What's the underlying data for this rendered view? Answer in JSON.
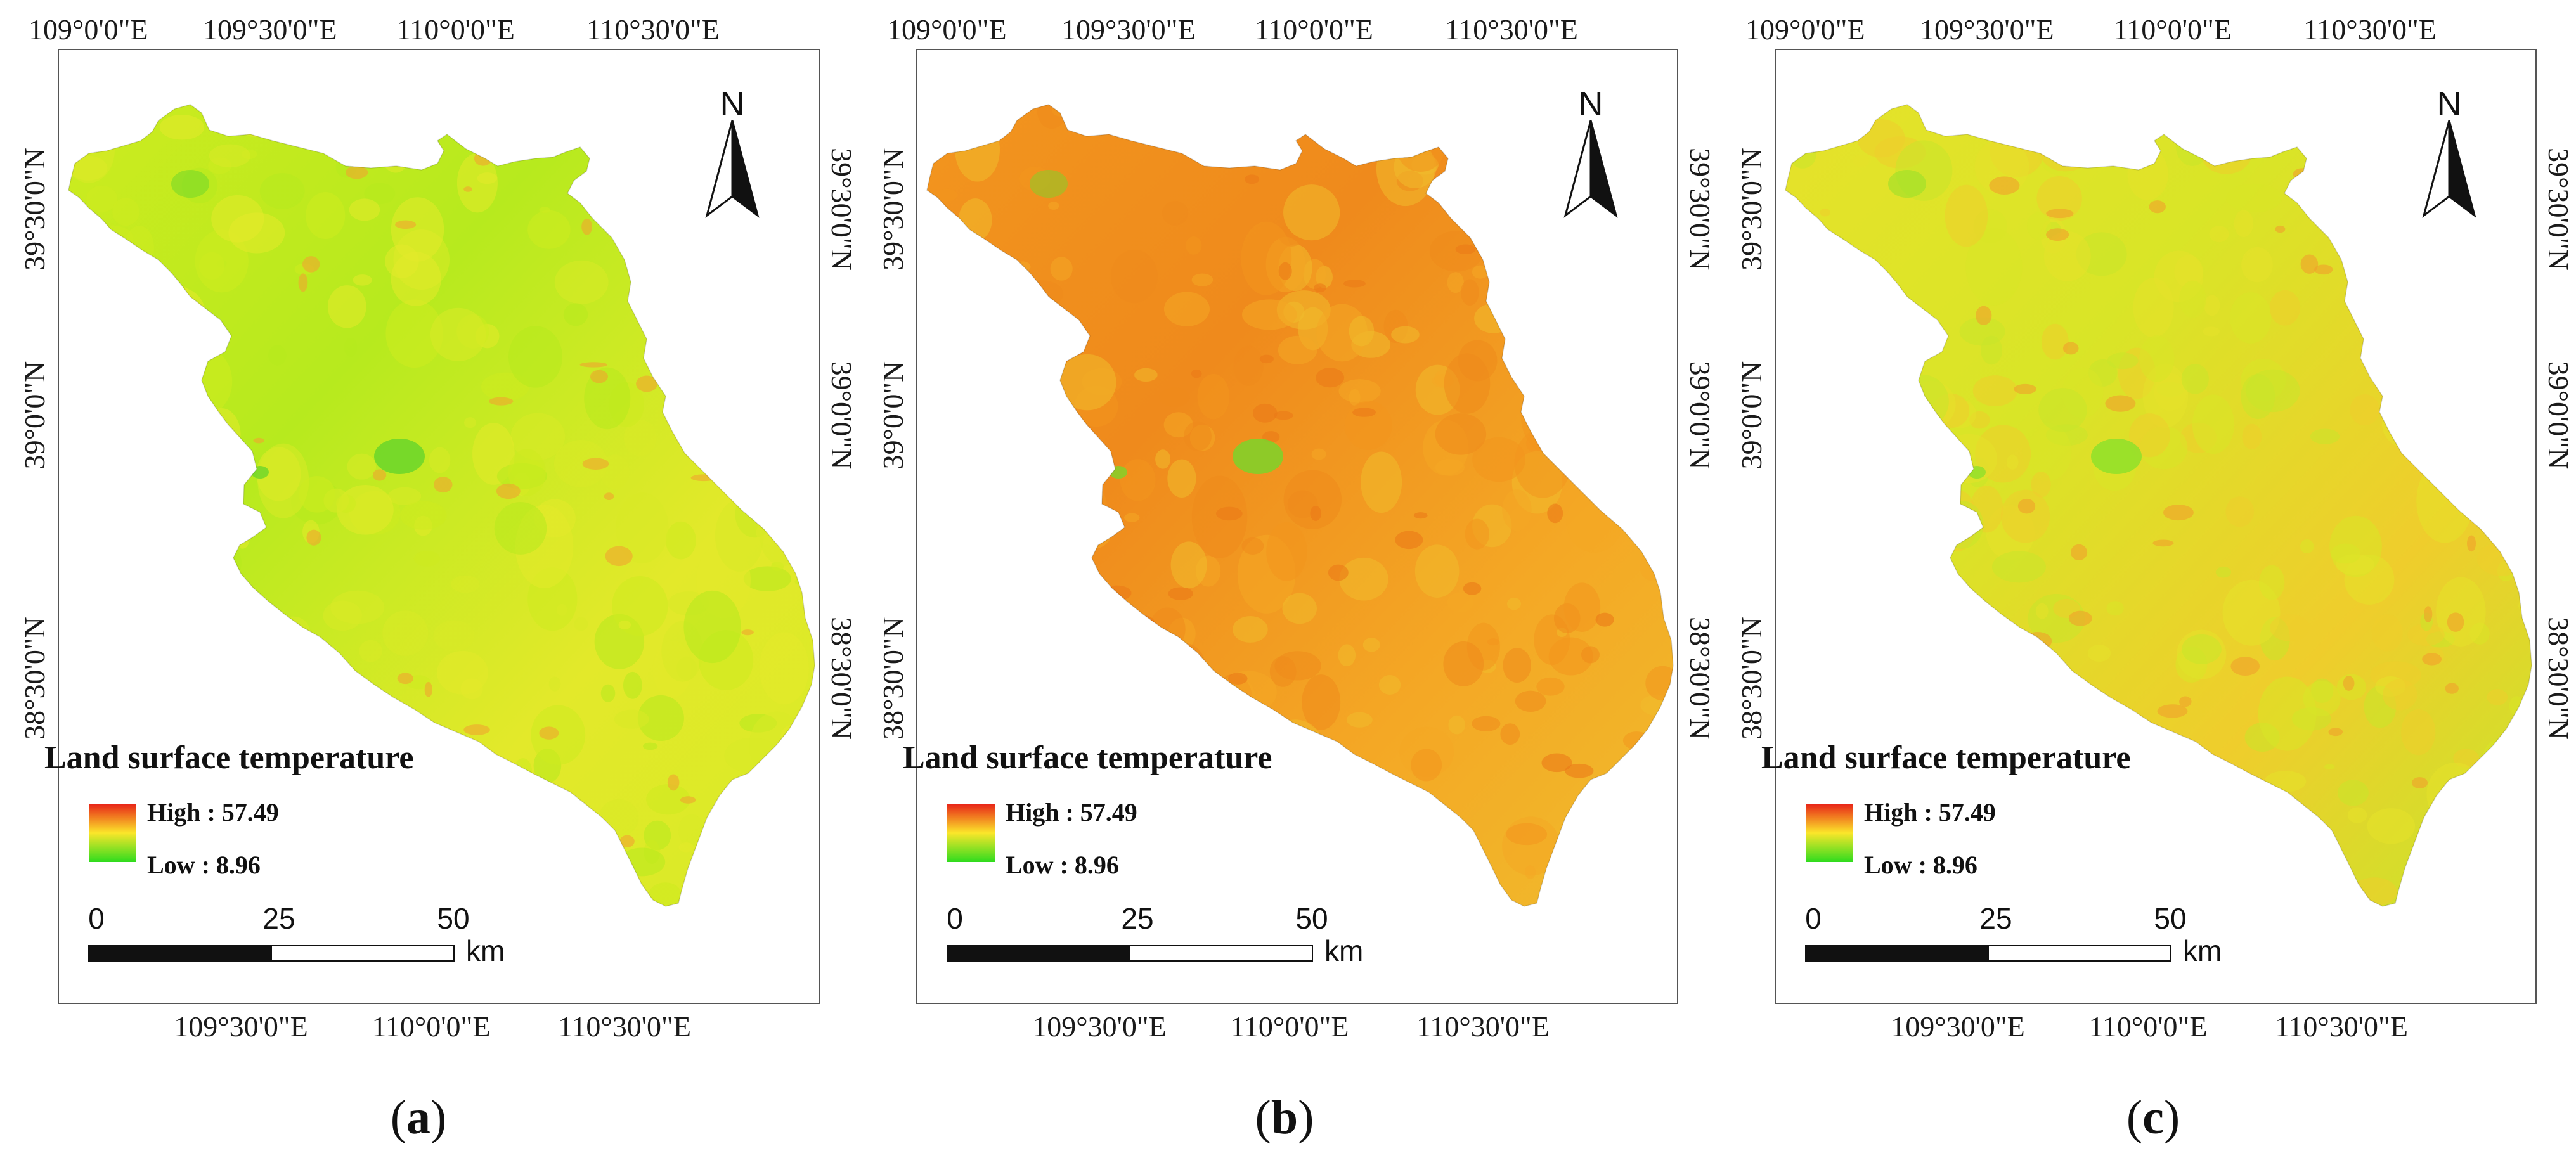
{
  "figure": {
    "panels": [
      {
        "id": "a",
        "caption_letter": "a",
        "top_lon_labels": [
          "109°0'0\"E",
          "109°30'0\"E",
          "110°0'0\"E",
          "110°30'0\"E"
        ],
        "bottom_lon_labels": [
          "109°30'0\"E",
          "110°0'0\"E",
          "110°30'0\"E"
        ],
        "left_lat_labels": [
          "39°30'0\"N",
          "39°0'0\"N",
          "38°30'0\"N"
        ],
        "right_lat_labels": [
          "39°30'0\"N",
          "39°0'0\"N",
          "38°30'0\"N"
        ],
        "fill_colors": [
          "#cdeb1f",
          "#b7ea1e",
          "#e3e92a",
          "#d8ea26"
        ],
        "hotspot_color": "#f0a52e",
        "green_patch_color": "#6ad62a"
      },
      {
        "id": "b",
        "caption_letter": "b",
        "top_lon_labels": [
          "109°0'0\"E",
          "109°30'0\"E",
          "110°0'0\"E",
          "110°30'0\"E"
        ],
        "bottom_lon_labels": [
          "109°30'0\"E",
          "110°0'0\"E",
          "110°30'0\"E"
        ],
        "left_lat_labels": [
          "39°30'0\"N",
          "39°0'0\"N",
          "38°30'0\"N"
        ],
        "right_lat_labels": [
          "39°30'0\"N",
          "39°0'0\"N",
          "38°30'0\"N"
        ],
        "fill_colors": [
          "#f2951e",
          "#ef8a1c",
          "#f4a825",
          "#f0bc2c"
        ],
        "hotspot_color": "#eb7a18",
        "green_patch_color": "#7dd42a"
      },
      {
        "id": "c",
        "caption_letter": "c",
        "top_lon_labels": [
          "109°0'0\"E",
          "109°30'0\"E",
          "110°0'0\"E",
          "110°30'0\"E"
        ],
        "bottom_lon_labels": [
          "109°30'0\"E",
          "110°0'0\"E",
          "110°30'0\"E"
        ],
        "left_lat_labels": [
          "39°30'0\"N",
          "39°0'0\"N",
          "38°30'0\"N"
        ],
        "right_lat_labels": [
          "39°30'0\"N",
          "39°0'0\"N",
          "38°30'0\"N"
        ],
        "fill_colors": [
          "#e6e22a",
          "#d9e527",
          "#efcd2c",
          "#c8e62a"
        ],
        "hotspot_color": "#f0a02c",
        "green_patch_color": "#8fe02a"
      }
    ],
    "legend": {
      "title": "Land surface temperature",
      "high_label": "High : 57.49",
      "low_label": "Low : 8.96",
      "high_color": "#e82318",
      "mid_color": "#fbe62a",
      "low_color": "#2fdc1e"
    },
    "north_arrow": {
      "label": "N"
    },
    "scale_bar": {
      "ticks": [
        "0",
        "25",
        "50"
      ],
      "unit": "km"
    }
  }
}
